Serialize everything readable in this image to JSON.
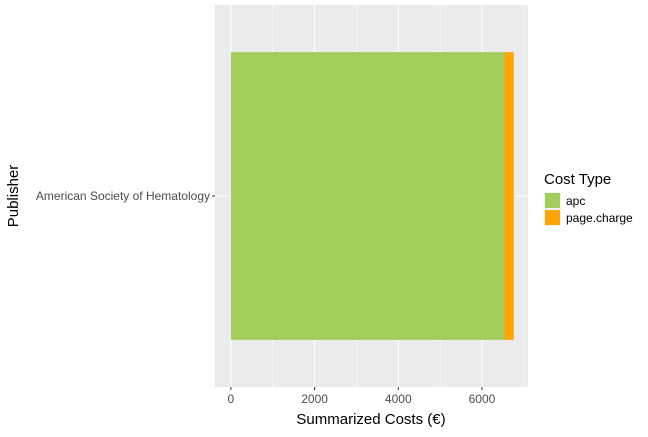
{
  "chart_data": {
    "type": "bar",
    "orientation": "horizontal",
    "stacked": true,
    "categories": [
      "American Society of Hematology"
    ],
    "series": [
      {
        "name": "apc",
        "color": "#A2CD5A",
        "values": [
          6540
        ]
      },
      {
        "name": "page.charge",
        "color": "#FFA500",
        "values": [
          220
        ]
      }
    ],
    "xlabel": "Summarized Costs (€)",
    "ylabel": "Publisher",
    "xlim": [
      -380,
      7100
    ],
    "x_ticks": [
      0,
      2000,
      4000,
      6000
    ],
    "x_minor_ticks": [
      1000,
      3000,
      5000,
      7000
    ],
    "grid": true,
    "panel_background": "#EBEBEB",
    "grid_color": "#FFFFFF",
    "legend": {
      "title": "Cost Type",
      "placement": "right",
      "entries": [
        "apc",
        "page.charge"
      ]
    }
  }
}
